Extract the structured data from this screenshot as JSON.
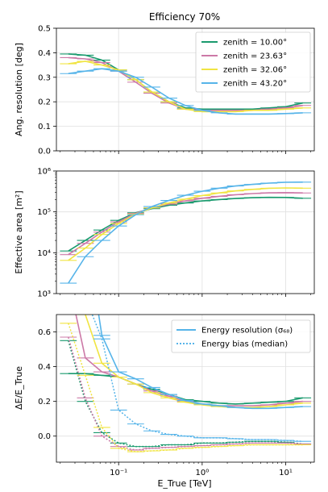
{
  "chart_data": [
    {
      "type": "line",
      "title": "Efficiency 70%",
      "xlabel": "",
      "ylabel": "Ang. resolution [deg]",
      "xscale": "log",
      "xlim": [
        0.018,
        22
      ],
      "ylim": [
        0.0,
        0.5
      ],
      "yticks": [
        "0.0",
        "0.1",
        "0.2",
        "0.3",
        "0.4",
        "0.5"
      ],
      "grid": true,
      "legend_position": "top-right",
      "x": [
        0.025,
        0.04,
        0.063,
        0.1,
        0.16,
        0.25,
        0.4,
        0.63,
        1.0,
        1.6,
        2.5,
        4.0,
        6.3,
        10,
        16
      ],
      "series": [
        {
          "name": "zenith = 10.00°",
          "color": "#1a9a6e",
          "values": [
            0.395,
            0.39,
            0.37,
            0.33,
            0.29,
            0.24,
            0.2,
            0.175,
            0.17,
            0.17,
            0.17,
            0.17,
            0.175,
            0.18,
            0.195
          ]
        },
        {
          "name": "zenith = 23.63°",
          "color": "#cc79a7",
          "values": [
            0.38,
            0.375,
            0.36,
            0.325,
            0.28,
            0.235,
            0.195,
            0.17,
            0.165,
            0.165,
            0.165,
            0.165,
            0.17,
            0.175,
            0.185
          ]
        },
        {
          "name": "zenith = 32.06°",
          "color": "#f0e442",
          "values": [
            0.355,
            0.365,
            0.35,
            0.33,
            0.29,
            0.24,
            0.2,
            0.17,
            0.16,
            0.16,
            0.16,
            0.165,
            0.165,
            0.17,
            0.175
          ]
        },
        {
          "name": "zenith = 43.20°",
          "color": "#56b4e9",
          "values": [
            0.315,
            0.325,
            0.335,
            0.325,
            0.3,
            0.26,
            0.215,
            0.185,
            0.165,
            0.155,
            0.15,
            0.15,
            0.15,
            0.152,
            0.155
          ]
        }
      ]
    },
    {
      "type": "line",
      "xlabel": "",
      "ylabel": "Effective area [m²]",
      "xscale": "log",
      "yscale": "log",
      "xlim": [
        0.018,
        22
      ],
      "ylim": [
        1000,
        1000000
      ],
      "yticks": [
        "10³",
        "10⁴",
        "10⁵",
        "10⁶"
      ],
      "grid": true,
      "x": [
        0.025,
        0.04,
        0.063,
        0.1,
        0.16,
        0.25,
        0.4,
        0.63,
        1.0,
        1.6,
        2.5,
        4.0,
        6.3,
        10,
        16
      ],
      "series": [
        {
          "color": "#1a9a6e",
          "values": [
            11000,
            20000,
            36000,
            62000,
            95000,
            120000,
            145000,
            165000,
            185000,
            200000,
            212000,
            222000,
            226000,
            225000,
            215000
          ]
        },
        {
          "color": "#cc79a7",
          "values": [
            9000,
            17000,
            32000,
            57000,
            92000,
            125000,
            155000,
            185000,
            215000,
            240000,
            262000,
            280000,
            292000,
            295000,
            290000
          ]
        },
        {
          "color": "#f0e442",
          "values": [
            6500,
            13000,
            28000,
            52000,
            88000,
            125000,
            165000,
            205000,
            250000,
            290000,
            325000,
            355000,
            378000,
            385000,
            380000
          ]
        },
        {
          "color": "#56b4e9",
          "values": [
            1800,
            8000,
            20000,
            45000,
            85000,
            135000,
            190000,
            255000,
            320000,
            380000,
            430000,
            470000,
            505000,
            530000,
            535000
          ]
        }
      ]
    },
    {
      "type": "line",
      "xlabel": "E_True [TeV]",
      "ylabel": "ΔE/E_True",
      "xscale": "log",
      "xlim": [
        0.018,
        22
      ],
      "ylim": [
        -0.15,
        0.7
      ],
      "yticks": [
        "0.0",
        "0.2",
        "0.4",
        "0.6"
      ],
      "xticks": [
        "10⁻¹",
        "10⁰",
        "10¹"
      ],
      "grid": true,
      "legend_position": "top-right",
      "legend": [
        {
          "label": "Energy resolution (σ₆₈)",
          "style": "solid"
        },
        {
          "label": "Energy bias (median)",
          "style": "dotted"
        }
      ],
      "x": [
        0.025,
        0.04,
        0.063,
        0.1,
        0.16,
        0.25,
        0.4,
        0.63,
        1.0,
        1.6,
        2.5,
        4.0,
        6.3,
        10,
        16
      ],
      "resolution": [
        {
          "color": "#1a9a6e",
          "values": [
            0.36,
            0.36,
            0.35,
            0.34,
            0.3,
            0.27,
            0.24,
            0.21,
            0.2,
            0.19,
            0.185,
            0.19,
            0.195,
            0.2,
            0.22
          ]
        },
        {
          "color": "#cc79a7",
          "values": [
            0.9,
            0.45,
            0.37,
            0.34,
            0.3,
            0.26,
            0.23,
            0.2,
            0.185,
            0.175,
            0.175,
            0.175,
            0.18,
            0.19,
            0.2
          ]
        },
        {
          "color": "#f0e442",
          "values": [
            1.2,
            0.7,
            0.42,
            0.34,
            0.3,
            0.25,
            0.22,
            0.195,
            0.18,
            0.17,
            0.165,
            0.165,
            0.17,
            0.18,
            0.19
          ]
        },
        {
          "color": "#56b4e9",
          "values": [
            2.0,
            1.2,
            0.58,
            0.37,
            0.33,
            0.28,
            0.24,
            0.205,
            0.185,
            0.175,
            0.165,
            0.16,
            0.16,
            0.165,
            0.17
          ]
        }
      ],
      "bias": [
        {
          "color": "#1a9a6e",
          "values": [
            0.55,
            0.2,
            0.02,
            -0.04,
            -0.06,
            -0.06,
            -0.05,
            -0.05,
            -0.04,
            -0.04,
            -0.035,
            -0.03,
            -0.03,
            -0.035,
            -0.045
          ]
        },
        {
          "color": "#cc79a7",
          "values": [
            0.57,
            0.22,
            0.0,
            -0.06,
            -0.08,
            -0.07,
            -0.065,
            -0.06,
            -0.055,
            -0.05,
            -0.045,
            -0.04,
            -0.04,
            -0.04,
            -0.045
          ]
        },
        {
          "color": "#f0e442",
          "values": [
            0.65,
            0.35,
            0.05,
            -0.07,
            -0.09,
            -0.085,
            -0.08,
            -0.07,
            -0.065,
            -0.06,
            -0.055,
            -0.05,
            -0.05,
            -0.05,
            -0.05
          ]
        },
        {
          "color": "#56b4e9",
          "values": [
            1.2,
            0.8,
            0.56,
            0.15,
            0.07,
            0.03,
            0.01,
            0.0,
            -0.01,
            -0.01,
            -0.015,
            -0.02,
            -0.02,
            -0.025,
            -0.03
          ]
        }
      ]
    }
  ]
}
